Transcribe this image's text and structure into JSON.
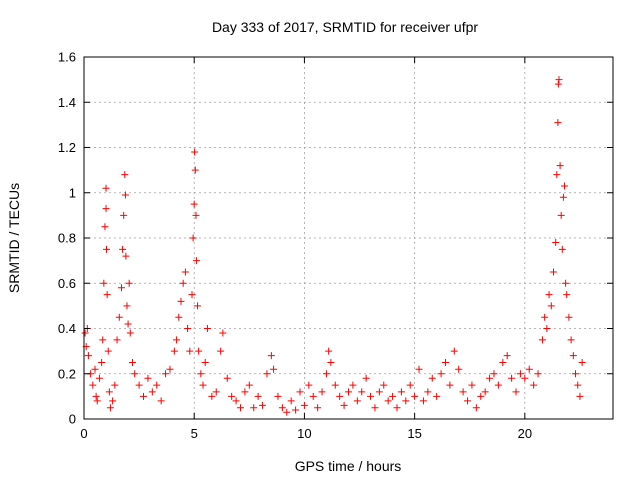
{
  "chart_data": {
    "type": "scatter",
    "title": "Day 333 of 2017, SRMTID for receiver ufpr",
    "xlabel": "GPS time / hours",
    "ylabel": "SRMTID / TECUs",
    "xlim": [
      0,
      24
    ],
    "ylim": [
      0,
      1.6
    ],
    "xticks": [
      0,
      5,
      10,
      15,
      20
    ],
    "xtick_labels": [
      "0",
      "5",
      "10",
      "15",
      "20"
    ],
    "yticks": [
      0,
      0.2,
      0.4,
      0.6,
      0.8,
      1,
      1.2,
      1.4,
      1.6
    ],
    "ytick_labels": [
      "0",
      "0.2",
      "0.4",
      "0.6",
      "0.8",
      "1",
      "1.2",
      "1.4",
      "1.6"
    ],
    "grid": true,
    "marker": "+",
    "color": "#ff0000",
    "series": [
      {
        "name": "SRMTID",
        "points": [
          [
            0.05,
            0.38
          ],
          [
            0.1,
            0.32
          ],
          [
            0.15,
            0.4
          ],
          [
            0.2,
            0.28
          ],
          [
            0.3,
            0.2
          ],
          [
            0.4,
            0.15
          ],
          [
            0.5,
            0.22
          ],
          [
            0.55,
            0.1
          ],
          [
            0.6,
            0.08
          ],
          [
            0.7,
            0.18
          ],
          [
            0.8,
            0.25
          ],
          [
            0.85,
            0.35
          ],
          [
            0.9,
            0.6
          ],
          [
            0.95,
            0.85
          ],
          [
            1.0,
            1.02
          ],
          [
            1.0,
            0.93
          ],
          [
            1.02,
            0.75
          ],
          [
            1.05,
            0.55
          ],
          [
            1.1,
            0.3
          ],
          [
            1.15,
            0.12
          ],
          [
            1.2,
            0.05
          ],
          [
            1.3,
            0.08
          ],
          [
            1.4,
            0.15
          ],
          [
            1.5,
            0.35
          ],
          [
            1.6,
            0.45
          ],
          [
            1.7,
            0.58
          ],
          [
            1.75,
            0.75
          ],
          [
            1.8,
            0.9
          ],
          [
            1.85,
            1.08
          ],
          [
            1.88,
            0.99
          ],
          [
            1.9,
            0.72
          ],
          [
            1.95,
            0.5
          ],
          [
            2.0,
            0.42
          ],
          [
            2.05,
            0.6
          ],
          [
            2.1,
            0.38
          ],
          [
            2.2,
            0.25
          ],
          [
            2.3,
            0.2
          ],
          [
            2.5,
            0.15
          ],
          [
            2.7,
            0.1
          ],
          [
            2.9,
            0.18
          ],
          [
            3.1,
            0.12
          ],
          [
            3.3,
            0.15
          ],
          [
            3.5,
            0.08
          ],
          [
            3.7,
            0.2
          ],
          [
            3.9,
            0.22
          ],
          [
            4.1,
            0.3
          ],
          [
            4.2,
            0.35
          ],
          [
            4.3,
            0.45
          ],
          [
            4.4,
            0.52
          ],
          [
            4.5,
            0.6
          ],
          [
            4.6,
            0.65
          ],
          [
            4.7,
            0.4
          ],
          [
            4.8,
            0.3
          ],
          [
            4.9,
            0.55
          ],
          [
            4.95,
            0.8
          ],
          [
            5.0,
            0.95
          ],
          [
            5.02,
            1.18
          ],
          [
            5.05,
            1.1
          ],
          [
            5.08,
            0.9
          ],
          [
            5.1,
            0.7
          ],
          [
            5.15,
            0.5
          ],
          [
            5.2,
            0.3
          ],
          [
            5.3,
            0.2
          ],
          [
            5.4,
            0.15
          ],
          [
            5.5,
            0.25
          ],
          [
            5.6,
            0.4
          ],
          [
            5.8,
            0.1
          ],
          [
            6.0,
            0.12
          ],
          [
            6.2,
            0.3
          ],
          [
            6.3,
            0.38
          ],
          [
            6.5,
            0.18
          ],
          [
            6.7,
            0.1
          ],
          [
            6.9,
            0.08
          ],
          [
            7.1,
            0.05
          ],
          [
            7.3,
            0.12
          ],
          [
            7.5,
            0.15
          ],
          [
            7.7,
            0.05
          ],
          [
            7.9,
            0.1
          ],
          [
            8.1,
            0.06
          ],
          [
            8.3,
            0.2
          ],
          [
            8.5,
            0.28
          ],
          [
            8.6,
            0.22
          ],
          [
            8.8,
            0.1
          ],
          [
            9.0,
            0.05
          ],
          [
            9.2,
            0.03
          ],
          [
            9.4,
            0.08
          ],
          [
            9.6,
            0.04
          ],
          [
            9.8,
            0.12
          ],
          [
            10.0,
            0.06
          ],
          [
            10.2,
            0.15
          ],
          [
            10.4,
            0.1
          ],
          [
            10.6,
            0.05
          ],
          [
            10.8,
            0.12
          ],
          [
            11.0,
            0.2
          ],
          [
            11.1,
            0.3
          ],
          [
            11.2,
            0.25
          ],
          [
            11.4,
            0.15
          ],
          [
            11.6,
            0.1
          ],
          [
            11.8,
            0.06
          ],
          [
            12.0,
            0.12
          ],
          [
            12.2,
            0.15
          ],
          [
            12.4,
            0.08
          ],
          [
            12.6,
            0.12
          ],
          [
            12.8,
            0.18
          ],
          [
            13.0,
            0.1
          ],
          [
            13.2,
            0.05
          ],
          [
            13.4,
            0.12
          ],
          [
            13.6,
            0.15
          ],
          [
            13.8,
            0.08
          ],
          [
            14.0,
            0.1
          ],
          [
            14.2,
            0.05
          ],
          [
            14.4,
            0.12
          ],
          [
            14.6,
            0.08
          ],
          [
            14.8,
            0.15
          ],
          [
            15.0,
            0.1
          ],
          [
            15.2,
            0.22
          ],
          [
            15.4,
            0.08
          ],
          [
            15.6,
            0.12
          ],
          [
            15.8,
            0.18
          ],
          [
            16.0,
            0.1
          ],
          [
            16.2,
            0.2
          ],
          [
            16.4,
            0.25
          ],
          [
            16.6,
            0.15
          ],
          [
            16.8,
            0.3
          ],
          [
            17.0,
            0.22
          ],
          [
            17.2,
            0.12
          ],
          [
            17.4,
            0.08
          ],
          [
            17.6,
            0.15
          ],
          [
            17.8,
            0.05
          ],
          [
            18.0,
            0.1
          ],
          [
            18.2,
            0.12
          ],
          [
            18.4,
            0.18
          ],
          [
            18.6,
            0.2
          ],
          [
            18.8,
            0.15
          ],
          [
            19.0,
            0.25
          ],
          [
            19.2,
            0.28
          ],
          [
            19.4,
            0.18
          ],
          [
            19.6,
            0.12
          ],
          [
            19.8,
            0.2
          ],
          [
            20.0,
            0.18
          ],
          [
            20.2,
            0.22
          ],
          [
            20.4,
            0.15
          ],
          [
            20.6,
            0.2
          ],
          [
            20.8,
            0.35
          ],
          [
            20.9,
            0.45
          ],
          [
            21.0,
            0.4
          ],
          [
            21.1,
            0.55
          ],
          [
            21.2,
            0.5
          ],
          [
            21.3,
            0.65
          ],
          [
            21.4,
            0.78
          ],
          [
            21.45,
            1.08
          ],
          [
            21.5,
            1.31
          ],
          [
            21.52,
            1.48
          ],
          [
            21.55,
            1.5
          ],
          [
            21.6,
            1.12
          ],
          [
            21.65,
            0.9
          ],
          [
            21.7,
            0.75
          ],
          [
            21.75,
            0.98
          ],
          [
            21.8,
            1.03
          ],
          [
            21.85,
            0.6
          ],
          [
            21.9,
            0.55
          ],
          [
            22.0,
            0.45
          ],
          [
            22.1,
            0.35
          ],
          [
            22.2,
            0.28
          ],
          [
            22.3,
            0.2
          ],
          [
            22.4,
            0.15
          ],
          [
            22.5,
            0.1
          ],
          [
            22.6,
            0.25
          ]
        ]
      }
    ]
  }
}
